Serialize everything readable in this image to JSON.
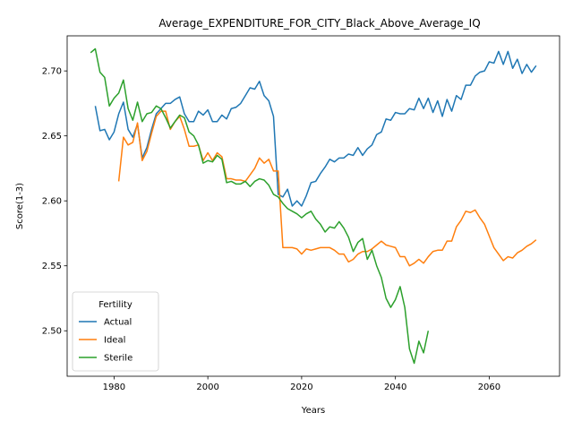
{
  "chart_data": {
    "type": "line",
    "title": "Average_EXPENDITURE_FOR_CITY_Black_Above_Average_IQ",
    "xlabel": "Years",
    "ylabel": "Score(1-3)",
    "xlim": [
      1970,
      2075
    ],
    "ylim": [
      2.465,
      2.727
    ],
    "xticks": [
      1980,
      2000,
      2020,
      2040,
      2060
    ],
    "yticks": [
      2.5,
      2.55,
      2.6,
      2.65,
      2.7
    ],
    "grid": false,
    "legend": {
      "title": "Fertility",
      "position": "bottom-left"
    },
    "series": [
      {
        "name": "Actual",
        "color": "#1f77b4",
        "x": [
          1976,
          1977,
          1978,
          1979,
          1980,
          1981,
          1982,
          1983,
          1984,
          1985,
          1986,
          1987,
          1988,
          1989,
          1990,
          1991,
          1992,
          1993,
          1994,
          1995,
          1996,
          1997,
          1998,
          1999,
          2000,
          2001,
          2002,
          2003,
          2004,
          2005,
          2006,
          2007,
          2008,
          2009,
          2010,
          2011,
          2012,
          2013,
          2014,
          2015,
          2016,
          2017,
          2018,
          2019,
          2020,
          2021,
          2022,
          2023,
          2024,
          2025,
          2026,
          2027,
          2028,
          2029,
          2030,
          2031,
          2032,
          2033,
          2034,
          2035,
          2036,
          2037,
          2038,
          2039,
          2040,
          2041,
          2042,
          2043,
          2044,
          2045,
          2046,
          2047,
          2048,
          2049,
          2050,
          2051,
          2052,
          2053,
          2054,
          2055,
          2056,
          2057,
          2058,
          2059,
          2060,
          2061,
          2062,
          2063,
          2064,
          2065,
          2066,
          2067,
          2068,
          2069,
          2070
        ],
        "y": [
          2.673,
          2.654,
          2.655,
          2.647,
          2.653,
          2.667,
          2.676,
          2.655,
          2.649,
          2.659,
          2.633,
          2.641,
          2.655,
          2.667,
          2.671,
          2.675,
          2.675,
          2.678,
          2.68,
          2.667,
          2.661,
          2.661,
          2.669,
          2.666,
          2.67,
          2.661,
          2.661,
          2.666,
          2.663,
          2.671,
          2.672,
          2.675,
          2.681,
          2.687,
          2.686,
          2.692,
          2.681,
          2.677,
          2.665,
          2.605,
          2.603,
          2.609,
          2.596,
          2.6,
          2.596,
          2.604,
          2.614,
          2.615,
          2.621,
          2.626,
          2.632,
          2.63,
          2.633,
          2.633,
          2.636,
          2.635,
          2.641,
          2.635,
          2.64,
          2.643,
          2.651,
          2.653,
          2.663,
          2.662,
          2.668,
          2.667,
          2.667,
          2.671,
          2.67,
          2.679,
          2.671,
          2.679,
          2.668,
          2.677,
          2.665,
          2.678,
          2.669,
          2.681,
          2.678,
          2.689,
          2.689,
          2.696,
          2.699,
          2.7,
          2.707,
          2.706,
          2.715,
          2.705,
          2.715,
          2.702,
          2.709,
          2.698,
          2.705,
          2.699,
          2.704
        ]
      },
      {
        "name": "Ideal",
        "color": "#ff7f0e",
        "x": [
          1981,
          1982,
          1983,
          1984,
          1985,
          1986,
          1987,
          1988,
          1989,
          1990,
          1991,
          1992,
          1993,
          1994,
          1995,
          1996,
          1997,
          1998,
          1999,
          2000,
          2001,
          2002,
          2003,
          2004,
          2005,
          2006,
          2007,
          2008,
          2009,
          2010,
          2011,
          2012,
          2013,
          2014,
          2015,
          2016,
          2017,
          2018,
          2019,
          2020,
          2021,
          2022,
          2023,
          2024,
          2025,
          2026,
          2027,
          2028,
          2029,
          2030,
          2031,
          2032,
          2033,
          2034,
          2035,
          2036,
          2037,
          2038,
          2039,
          2040,
          2041,
          2042,
          2043,
          2044,
          2045,
          2046,
          2047,
          2048,
          2049,
          2050,
          2051,
          2052,
          2053,
          2054,
          2055,
          2056,
          2057,
          2058,
          2059,
          2060,
          2061,
          2062,
          2063,
          2064,
          2065,
          2066,
          2067,
          2068,
          2069,
          2070
        ],
        "y": [
          2.615,
          2.649,
          2.643,
          2.645,
          2.66,
          2.631,
          2.638,
          2.652,
          2.665,
          2.669,
          2.669,
          2.655,
          2.661,
          2.665,
          2.655,
          2.642,
          2.642,
          2.643,
          2.631,
          2.637,
          2.631,
          2.637,
          2.634,
          2.617,
          2.617,
          2.616,
          2.616,
          2.615,
          2.62,
          2.625,
          2.633,
          2.629,
          2.632,
          2.623,
          2.623,
          2.564,
          2.564,
          2.564,
          2.563,
          2.559,
          2.563,
          2.562,
          2.563,
          2.564,
          2.564,
          2.564,
          2.562,
          2.559,
          2.559,
          2.553,
          2.555,
          2.559,
          2.561,
          2.561,
          2.563,
          2.566,
          2.569,
          2.566,
          2.565,
          2.564,
          2.557,
          2.557,
          2.55,
          2.552,
          2.555,
          2.552,
          2.557,
          2.561,
          2.562,
          2.562,
          2.569,
          2.569,
          2.58,
          2.585,
          2.592,
          2.591,
          2.593,
          2.587,
          2.582,
          2.573,
          2.564,
          2.559,
          2.554,
          2.557,
          2.556,
          2.56,
          2.562,
          2.565,
          2.567,
          2.57
        ]
      },
      {
        "name": "Sterile",
        "color": "#2ca02c",
        "x": [
          1975,
          1976,
          1977,
          1978,
          1979,
          1980,
          1981,
          1982,
          1983,
          1984,
          1985,
          1986,
          1987,
          1988,
          1989,
          1990,
          1991,
          1992,
          1993,
          1994,
          1995,
          1996,
          1997,
          1998,
          1999,
          2000,
          2001,
          2002,
          2003,
          2004,
          2005,
          2006,
          2007,
          2008,
          2009,
          2010,
          2011,
          2012,
          2013,
          2014,
          2015,
          2016,
          2017,
          2018,
          2019,
          2020,
          2021,
          2022,
          2023,
          2024,
          2025,
          2026,
          2027,
          2028,
          2029,
          2030,
          2031,
          2032,
          2033,
          2034,
          2035,
          2036,
          2037,
          2038,
          2039,
          2040,
          2041,
          2042,
          2043,
          2044,
          2045,
          2046,
          2047
        ],
        "y": [
          2.714,
          2.717,
          2.699,
          2.695,
          2.673,
          2.679,
          2.683,
          2.693,
          2.671,
          2.662,
          2.676,
          2.661,
          2.667,
          2.668,
          2.673,
          2.671,
          2.664,
          2.656,
          2.661,
          2.666,
          2.664,
          2.653,
          2.65,
          2.643,
          2.629,
          2.631,
          2.63,
          2.635,
          2.632,
          2.614,
          2.615,
          2.613,
          2.613,
          2.615,
          2.611,
          2.615,
          2.617,
          2.616,
          2.612,
          2.605,
          2.603,
          2.598,
          2.594,
          2.592,
          2.59,
          2.587,
          2.59,
          2.592,
          2.586,
          2.582,
          2.576,
          2.58,
          2.579,
          2.584,
          2.579,
          2.572,
          2.561,
          2.568,
          2.571,
          2.555,
          2.562,
          2.55,
          2.541,
          2.525,
          2.518,
          2.524,
          2.534,
          2.518,
          2.486,
          2.475,
          2.492,
          2.483,
          2.5
        ]
      }
    ]
  }
}
